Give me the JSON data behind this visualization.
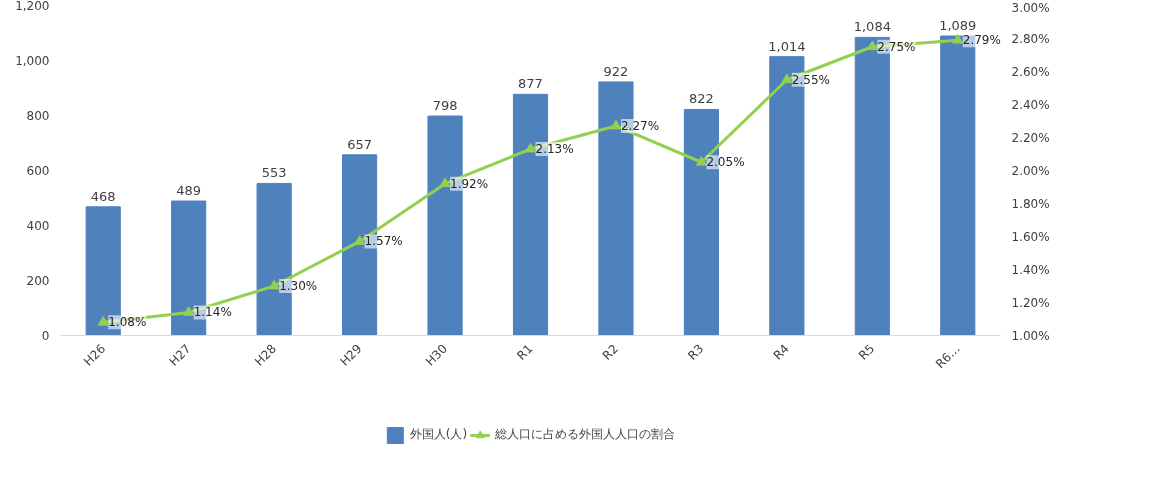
{
  "chart_data": {
    "type": "bar",
    "categories": [
      "H26",
      "H27",
      "H28",
      "H29",
      "H30",
      "R1",
      "R2",
      "R3",
      "R4",
      "R5",
      "R6…"
    ],
    "series": [
      {
        "name": "外国人(人)",
        "color": "#4f81bd",
        "values": [
          468,
          489,
          553,
          657,
          798,
          877,
          922,
          822,
          1014,
          1084,
          1089
        ],
        "value_labels": [
          "468",
          "489",
          "553",
          "657",
          "798",
          "877",
          "922",
          "822",
          "1,014",
          "1,084",
          "1,089"
        ]
      },
      {
        "name": "総人口に占める外国人人口の割合",
        "type": "line",
        "axis": "y2",
        "color": "#92d050",
        "marker": "triangle",
        "values": [
          1.08,
          1.14,
          1.3,
          1.57,
          1.92,
          2.13,
          2.27,
          2.05,
          2.55,
          2.75,
          2.79
        ],
        "value_labels": [
          "1.08%",
          "1.14%",
          "1.30%",
          "1.57%",
          "1.92%",
          "2.13%",
          "2.27%",
          "2.05%",
          "2.55%",
          "2.75%",
          "2.79%"
        ]
      }
    ],
    "ylim": [
      0,
      1200
    ],
    "yticks": [
      0,
      {
        "value": 200,
        "label": "200"
      },
      {
        "value": 400,
        "label": "400"
      },
      {
        "value": 600,
        "label": "600"
      },
      {
        "value": 800,
        "label": "800"
      },
      {
        "value": 1000,
        "label": "1,000"
      },
      {
        "value": 1200,
        "label": "1,200"
      }
    ],
    "y2lim": [
      1.0,
      3.0
    ],
    "y2ticks": [
      {
        "value": 1.0,
        "label": "1.00%"
      },
      {
        "value": 1.2,
        "label": "1.20%"
      },
      {
        "value": 1.4,
        "label": "1.40%"
      },
      {
        "value": 1.6,
        "label": "1.60%"
      },
      {
        "value": 1.8,
        "label": "1.80%"
      },
      {
        "value": 2.0,
        "label": "2.00%"
      },
      {
        "value": 2.2,
        "label": "2.20%"
      },
      {
        "value": 2.4,
        "label": "2.40%"
      },
      {
        "value": 2.6,
        "label": "2.60%"
      },
      {
        "value": 2.8,
        "label": "2.80%"
      },
      {
        "value": 3.0,
        "label": "3.00%"
      }
    ],
    "legend": "bottom",
    "grid": false
  }
}
